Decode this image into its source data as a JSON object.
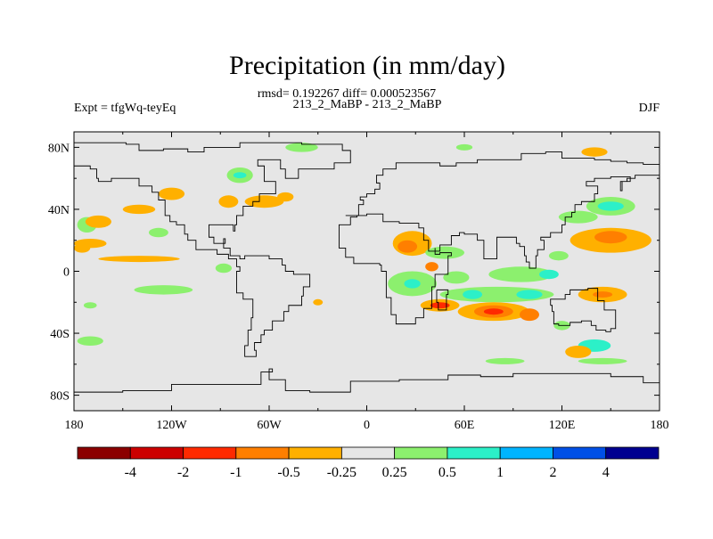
{
  "chart_data": {
    "type": "heatmap",
    "title": "Precipitation (in mm/day)",
    "stats": "rmsd= 0.192267 diff= 0.000523567",
    "subtitle": "213_2_MaBP - 213_2_MaBP",
    "left_label": "Expt = tfgWq-teyEq",
    "right_label": "DJF",
    "xlim": [
      -180,
      180
    ],
    "ylim": [
      -90,
      90
    ],
    "x_ticks": [
      {
        "value": -180,
        "label": "180"
      },
      {
        "value": -120,
        "label": "120W"
      },
      {
        "value": -60,
        "label": "60W"
      },
      {
        "value": 0,
        "label": "0"
      },
      {
        "value": 60,
        "label": "60E"
      },
      {
        "value": 120,
        "label": "120E"
      },
      {
        "value": 180,
        "label": "180"
      }
    ],
    "y_ticks": [
      {
        "value": 80,
        "label": "80N"
      },
      {
        "value": 40,
        "label": "40N"
      },
      {
        "value": 0,
        "label": "0"
      },
      {
        "value": -40,
        "label": "40S"
      },
      {
        "value": -80,
        "label": "80S"
      }
    ],
    "colorbar": {
      "colors": [
        "#8b0000",
        "#cc0000",
        "#ff2a00",
        "#ff7f00",
        "#ffb000",
        "#e6e6e6",
        "#8cf06e",
        "#2cf0c8",
        "#00b4ff",
        "#0050e6",
        "#000090"
      ],
      "labels": [
        "-4",
        "-2",
        "-1",
        "-0.5",
        "-0.25",
        "0.25",
        "0.5",
        "1",
        "2",
        "4"
      ]
    },
    "background_color": "#e6e6e6",
    "coastlines": [
      [
        [
          -180,
          83
        ],
        [
          -148,
          82
        ],
        [
          -140,
          78
        ],
        [
          -125,
          79
        ],
        [
          -110,
          77
        ],
        [
          -100,
          80
        ],
        [
          -88,
          80
        ],
        [
          -78,
          83
        ],
        [
          -55,
          83
        ],
        [
          -40,
          82
        ],
        [
          -22,
          82
        ],
        [
          -15,
          78
        ],
        [
          -10,
          70
        ],
        [
          -20,
          66
        ],
        [
          -42,
          60
        ],
        [
          -50,
          66
        ],
        [
          -53,
          72
        ],
        [
          -60,
          72
        ],
        [
          -67,
          68
        ],
        [
          -63,
          58
        ],
        [
          -56,
          50
        ],
        [
          -66,
          45
        ],
        [
          -70,
          42
        ],
        [
          -76,
          36
        ],
        [
          -80,
          30
        ],
        [
          -81,
          26
        ],
        [
          -82,
          30
        ],
        [
          -89,
          30
        ],
        [
          -97,
          27
        ],
        [
          -97,
          22
        ],
        [
          -94,
          18
        ],
        [
          -87,
          21
        ],
        [
          -88,
          15
        ],
        [
          -84,
          10
        ],
        [
          -78,
          8
        ],
        [
          -75,
          10
        ],
        [
          -60,
          8
        ],
        [
          -52,
          4
        ],
        [
          -50,
          0
        ],
        [
          -45,
          -2
        ],
        [
          -35,
          -6
        ],
        [
          -35,
          -10
        ],
        [
          -39,
          -16
        ],
        [
          -40,
          -22
        ],
        [
          -48,
          -26
        ],
        [
          -51,
          -32
        ],
        [
          -58,
          -38
        ],
        [
          -63,
          -41
        ],
        [
          -65,
          -46
        ],
        [
          -69,
          -51
        ],
        [
          -68,
          -55
        ],
        [
          -74,
          -55
        ],
        [
          -75,
          -48
        ],
        [
          -73,
          -38
        ],
        [
          -71,
          -30
        ],
        [
          -70,
          -18
        ],
        [
          -76,
          -14
        ],
        [
          -80,
          -6
        ],
        [
          -80,
          0
        ],
        [
          -78,
          3
        ],
        [
          -80,
          8
        ],
        [
          -85,
          11
        ],
        [
          -92,
          14
        ],
        [
          -105,
          20
        ],
        [
          -110,
          24
        ],
        [
          -112,
          30
        ],
        [
          -117,
          32
        ],
        [
          -121,
          36
        ],
        [
          -124,
          40
        ],
        [
          -124,
          46
        ],
        [
          -128,
          51
        ],
        [
          -132,
          55
        ],
        [
          -140,
          60
        ],
        [
          -150,
          60
        ],
        [
          -157,
          58
        ],
        [
          -165,
          60
        ],
        [
          -166,
          66
        ],
        [
          -170,
          68
        ],
        [
          -180,
          70
        ]
      ],
      [
        [
          -13,
          36
        ],
        [
          -6,
          36
        ],
        [
          -5,
          43
        ],
        [
          -2,
          46
        ],
        [
          -4,
          48
        ],
        [
          0,
          50
        ],
        [
          5,
          53
        ],
        [
          8,
          57
        ],
        [
          6,
          62
        ],
        [
          10,
          66
        ],
        [
          18,
          70
        ],
        [
          30,
          70
        ],
        [
          45,
          68
        ],
        [
          55,
          70
        ],
        [
          68,
          72
        ],
        [
          80,
          72
        ],
        [
          95,
          76
        ],
        [
          110,
          77
        ],
        [
          120,
          73
        ],
        [
          140,
          72
        ],
        [
          150,
          71
        ],
        [
          160,
          70
        ],
        [
          170,
          69
        ],
        [
          180,
          68
        ]
      ],
      [
        [
          180,
          62
        ],
        [
          175,
          62
        ],
        [
          165,
          60
        ],
        [
          160,
          58
        ],
        [
          156,
          52
        ],
        [
          157,
          58
        ],
        [
          162,
          61
        ],
        [
          150,
          60
        ],
        [
          140,
          58
        ],
        [
          135,
          55
        ],
        [
          142,
          50
        ],
        [
          140,
          45
        ],
        [
          132,
          43
        ],
        [
          128,
          38
        ],
        [
          126,
          35
        ],
        [
          122,
          30
        ],
        [
          120,
          25
        ],
        [
          113,
          22
        ],
        [
          107,
          20
        ],
        [
          109,
          14
        ],
        [
          105,
          10
        ],
        [
          104,
          2
        ],
        [
          100,
          6
        ],
        [
          98,
          10
        ],
        [
          97,
          16
        ],
        [
          94,
          18
        ],
        [
          92,
          22
        ],
        [
          88,
          22
        ],
        [
          80,
          14
        ],
        [
          80,
          8
        ],
        [
          77,
          8
        ],
        [
          72,
          20
        ],
        [
          68,
          24
        ],
        [
          60,
          25
        ],
        [
          57,
          23
        ],
        [
          52,
          17
        ],
        [
          45,
          13
        ],
        [
          43,
          13
        ],
        [
          38,
          20
        ],
        [
          35,
          28
        ],
        [
          32,
          31
        ],
        [
          28,
          31
        ],
        [
          20,
          32
        ],
        [
          10,
          37
        ],
        [
          0,
          36
        ],
        [
          -6,
          35
        ],
        [
          -10,
          30
        ],
        [
          -17,
          21
        ],
        [
          -17,
          15
        ],
        [
          -13,
          9
        ],
        [
          -8,
          5
        ],
        [
          0,
          5
        ],
        [
          8,
          4
        ],
        [
          9,
          0
        ],
        [
          12,
          -5
        ],
        [
          12,
          -17
        ],
        [
          15,
          -28
        ],
        [
          18,
          -34
        ],
        [
          25,
          -34
        ],
        [
          30,
          -30
        ],
        [
          35,
          -24
        ],
        [
          40,
          -15
        ],
        [
          40,
          -10
        ],
        [
          42,
          -2
        ],
        [
          50,
          10
        ],
        [
          52,
          12
        ],
        [
          45,
          11
        ],
        [
          42,
          15
        ]
      ],
      [
        [
          43,
          -12
        ],
        [
          50,
          -15
        ],
        [
          49,
          -25
        ],
        [
          45,
          -25
        ],
        [
          44,
          -20
        ],
        [
          43,
          -12
        ]
      ],
      [
        [
          113,
          -22
        ],
        [
          114,
          -26
        ],
        [
          115,
          -34
        ],
        [
          118,
          -35
        ],
        [
          125,
          -33
        ],
        [
          132,
          -32
        ],
        [
          138,
          -35
        ],
        [
          141,
          -38
        ],
        [
          147,
          -39
        ],
        [
          150,
          -37
        ],
        [
          153,
          -30
        ],
        [
          153,
          -25
        ],
        [
          146,
          -19
        ],
        [
          142,
          -11
        ],
        [
          136,
          -12
        ],
        [
          130,
          -12
        ],
        [
          125,
          -15
        ],
        [
          122,
          -18
        ],
        [
          113,
          -22
        ]
      ],
      [
        [
          -180,
          -78
        ],
        [
          -150,
          -77
        ],
        [
          -120,
          -73
        ],
        [
          -100,
          -73
        ],
        [
          -80,
          -73
        ],
        [
          -65,
          -65
        ],
        [
          -58,
          -63
        ],
        [
          -60,
          -70
        ],
        [
          -50,
          -77
        ],
        [
          -35,
          -78
        ],
        [
          -10,
          -71
        ],
        [
          20,
          -70
        ],
        [
          50,
          -67
        ],
        [
          70,
          -68
        ],
        [
          90,
          -66
        ],
        [
          120,
          -66
        ],
        [
          150,
          -68
        ],
        [
          170,
          -72
        ],
        [
          180,
          -78
        ]
      ]
    ],
    "anomalies": [
      {
        "lon": -40,
        "lat": 80,
        "rx": 10,
        "ry": 3,
        "color": "#8cf06e"
      },
      {
        "lon": 140,
        "lat": 77,
        "rx": 8,
        "ry": 3,
        "color": "#ffb000"
      },
      {
        "lon": -120,
        "lat": 50,
        "rx": 8,
        "ry": 4,
        "color": "#ffb000"
      },
      {
        "lon": -78,
        "lat": 62,
        "rx": 8,
        "ry": 5,
        "color": "#8cf06e"
      },
      {
        "lon": -78,
        "lat": 62,
        "rx": 4,
        "ry": 2,
        "color": "#2cf0c8"
      },
      {
        "lon": -85,
        "lat": 45,
        "rx": 6,
        "ry": 4,
        "color": "#ffb000"
      },
      {
        "lon": -63,
        "lat": 45,
        "rx": 12,
        "ry": 4,
        "color": "#ffb000"
      },
      {
        "lon": -50,
        "lat": 48,
        "rx": 5,
        "ry": 3,
        "color": "#ffb000"
      },
      {
        "lon": -140,
        "lat": 40,
        "rx": 10,
        "ry": 3,
        "color": "#ffb000"
      },
      {
        "lon": -172,
        "lat": 30,
        "rx": 6,
        "ry": 5,
        "color": "#8cf06e"
      },
      {
        "lon": -165,
        "lat": 32,
        "rx": 8,
        "ry": 4,
        "color": "#ffb000"
      },
      {
        "lon": -128,
        "lat": 25,
        "rx": 6,
        "ry": 3,
        "color": "#8cf06e"
      },
      {
        "lon": -140,
        "lat": 8,
        "rx": 25,
        "ry": 2,
        "color": "#ffb000"
      },
      {
        "lon": -170,
        "lat": 18,
        "rx": 10,
        "ry": 3,
        "color": "#ffb000"
      },
      {
        "lon": -125,
        "lat": -12,
        "rx": 18,
        "ry": 3,
        "color": "#8cf06e"
      },
      {
        "lon": -170,
        "lat": -22,
        "rx": 4,
        "ry": 2,
        "color": "#8cf06e"
      },
      {
        "lon": -175,
        "lat": 15,
        "rx": 5,
        "ry": 3,
        "color": "#ffb000"
      },
      {
        "lon": -88,
        "lat": 2,
        "rx": 5,
        "ry": 3,
        "color": "#8cf06e"
      },
      {
        "lon": 28,
        "lat": 18,
        "rx": 12,
        "ry": 8,
        "color": "#ffb000"
      },
      {
        "lon": 25,
        "lat": 16,
        "rx": 6,
        "ry": 4,
        "color": "#ff7f00"
      },
      {
        "lon": 48,
        "lat": 12,
        "rx": 12,
        "ry": 4,
        "color": "#8cf06e"
      },
      {
        "lon": 40,
        "lat": 3,
        "rx": 4,
        "ry": 3,
        "color": "#ff7f00"
      },
      {
        "lon": 28,
        "lat": -8,
        "rx": 15,
        "ry": 8,
        "color": "#8cf06e"
      },
      {
        "lon": 28,
        "lat": -8,
        "rx": 5,
        "ry": 3,
        "color": "#2cf0c8"
      },
      {
        "lon": 55,
        "lat": -4,
        "rx": 8,
        "ry": 4,
        "color": "#8cf06e"
      },
      {
        "lon": 95,
        "lat": -2,
        "rx": 20,
        "ry": 5,
        "color": "#8cf06e"
      },
      {
        "lon": 112,
        "lat": -2,
        "rx": 6,
        "ry": 3,
        "color": "#2cf0c8"
      },
      {
        "lon": 80,
        "lat": -15,
        "rx": 35,
        "ry": 5,
        "color": "#8cf06e"
      },
      {
        "lon": 100,
        "lat": -15,
        "rx": 8,
        "ry": 3,
        "color": "#2cf0c8"
      },
      {
        "lon": 65,
        "lat": -15,
        "rx": 6,
        "ry": 3,
        "color": "#2cf0c8"
      },
      {
        "lon": 45,
        "lat": -22,
        "rx": 12,
        "ry": 4,
        "color": "#ffb000"
      },
      {
        "lon": 45,
        "lat": -22,
        "rx": 6,
        "ry": 2,
        "color": "#ff2a00"
      },
      {
        "lon": 78,
        "lat": -26,
        "rx": 22,
        "ry": 6,
        "color": "#ffb000"
      },
      {
        "lon": 78,
        "lat": -26,
        "rx": 12,
        "ry": 4,
        "color": "#ff7f00"
      },
      {
        "lon": 78,
        "lat": -26,
        "rx": 6,
        "ry": 2,
        "color": "#ff2a00"
      },
      {
        "lon": 100,
        "lat": -28,
        "rx": 6,
        "ry": 4,
        "color": "#ff7f00"
      },
      {
        "lon": 145,
        "lat": -15,
        "rx": 15,
        "ry": 5,
        "color": "#ffb000"
      },
      {
        "lon": 145,
        "lat": -15,
        "rx": 6,
        "ry": 2,
        "color": "#ff7f00"
      },
      {
        "lon": 150,
        "lat": 20,
        "rx": 25,
        "ry": 8,
        "color": "#ffb000"
      },
      {
        "lon": 150,
        "lat": 22,
        "rx": 10,
        "ry": 4,
        "color": "#ff7f00"
      },
      {
        "lon": 130,
        "lat": 35,
        "rx": 12,
        "ry": 4,
        "color": "#8cf06e"
      },
      {
        "lon": 150,
        "lat": 42,
        "rx": 15,
        "ry": 6,
        "color": "#8cf06e"
      },
      {
        "lon": 150,
        "lat": 42,
        "rx": 8,
        "ry": 3,
        "color": "#2cf0c8"
      },
      {
        "lon": 118,
        "lat": 10,
        "rx": 6,
        "ry": 3,
        "color": "#8cf06e"
      },
      {
        "lon": 140,
        "lat": -48,
        "rx": 10,
        "ry": 4,
        "color": "#2cf0c8"
      },
      {
        "lon": 130,
        "lat": -52,
        "rx": 8,
        "ry": 4,
        "color": "#ffb000"
      },
      {
        "lon": 145,
        "lat": -58,
        "rx": 15,
        "ry": 2,
        "color": "#8cf06e"
      },
      {
        "lon": 85,
        "lat": -58,
        "rx": 12,
        "ry": 2,
        "color": "#8cf06e"
      },
      {
        "lon": -170,
        "lat": -45,
        "rx": 8,
        "ry": 3,
        "color": "#8cf06e"
      },
      {
        "lon": 60,
        "lat": 80,
        "rx": 5,
        "ry": 2,
        "color": "#8cf06e"
      },
      {
        "lon": -30,
        "lat": -20,
        "rx": 3,
        "ry": 2,
        "color": "#ffb000"
      },
      {
        "lon": 120,
        "lat": -35,
        "rx": 5,
        "ry": 3,
        "color": "#8cf06e"
      }
    ]
  }
}
